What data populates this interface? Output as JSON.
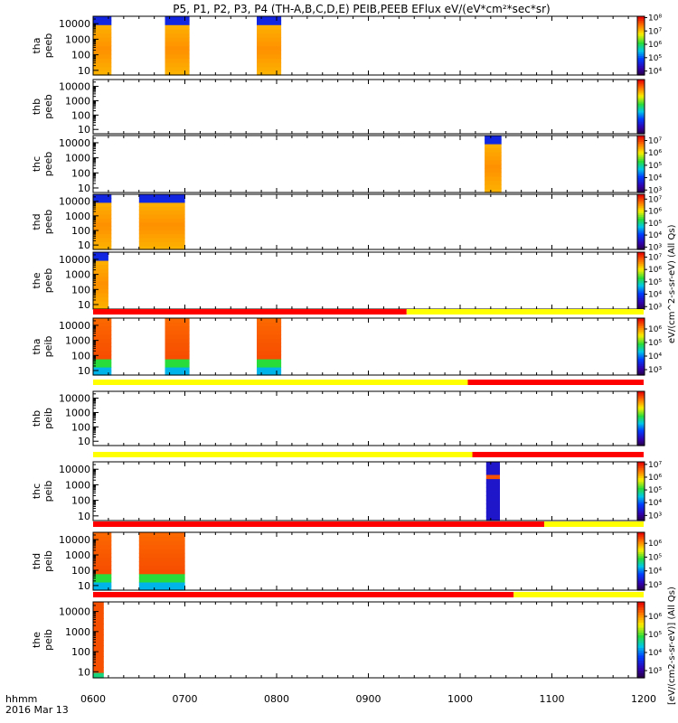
{
  "title": "P5, P1, P2, P3, P4 (TH-A,B,C,D,E) PEIB,PEEB EFlux eV/(eV*cm²*sec*sr)",
  "time_axis": {
    "label_line1": "hhmm",
    "label_line2": "2016 Mar 13",
    "ticks": [
      "0600",
      "0700",
      "0800",
      "0900",
      "1000",
      "1100",
      "1200"
    ],
    "range_hours": [
      6,
      12
    ]
  },
  "colorbar_labels": {
    "electron": "eV/(cm^2-s-sr-eV) (All Qs)",
    "ion": "[eV/(cm2-s-sr-eV)] (All Qs)"
  },
  "chart_data": [
    {
      "type": "heatmap",
      "probe": "tha",
      "product": "peeb",
      "ylabel": "tha\npeeb",
      "yscale": "log",
      "ylim": [
        5,
        30000
      ],
      "yticks": [
        "10",
        "100",
        "1000",
        "10000"
      ],
      "cbar": {
        "ticks": [
          "10⁴",
          "10⁵",
          "10⁶",
          "10⁷",
          "10⁸"
        ],
        "range_exp": [
          3.7,
          8.1
        ]
      },
      "bursts": [
        {
          "start": "06:00",
          "end": "06:12",
          "profile": "electron"
        },
        {
          "start": "06:47",
          "end": "07:03",
          "profile": "electron"
        },
        {
          "start": "07:47",
          "end": "08:03",
          "profile": "electron"
        }
      ],
      "mode_bar": null
    },
    {
      "type": "heatmap",
      "probe": "thb",
      "product": "peeb",
      "ylabel": "thb\npeeb",
      "yscale": "log",
      "ylim": [
        5,
        30000
      ],
      "yticks": [
        "10",
        "100",
        "1000",
        "10000"
      ],
      "cbar": {
        "ticks": [],
        "range_exp": [
          3.7,
          8.1
        ]
      },
      "bursts": [],
      "mode_bar": null
    },
    {
      "type": "heatmap",
      "probe": "thc",
      "product": "peeb",
      "ylabel": "thc\npeeb",
      "yscale": "log",
      "ylim": [
        5,
        30000
      ],
      "yticks": [
        "10",
        "100",
        "1000",
        "10000"
      ],
      "cbar": {
        "ticks": [
          "10³",
          "10⁴",
          "10⁵",
          "10⁶",
          "10⁷"
        ],
        "range_exp": [
          2.8,
          7.4
        ]
      },
      "bursts": [
        {
          "start": "10:16",
          "end": "10:27",
          "profile": "electron"
        }
      ],
      "mode_bar": null
    },
    {
      "type": "heatmap",
      "probe": "thd",
      "product": "peeb",
      "ylabel": "thd\npeeb",
      "yscale": "log",
      "ylim": [
        5,
        30000
      ],
      "yticks": [
        "10",
        "100",
        "1000",
        "10000"
      ],
      "cbar": {
        "ticks": [
          "10³",
          "10⁴",
          "10⁵",
          "10⁶",
          "10⁷"
        ],
        "range_exp": [
          2.8,
          7.4
        ]
      },
      "bursts": [
        {
          "start": "06:00",
          "end": "06:12",
          "profile": "electron"
        },
        {
          "start": "06:30",
          "end": "07:00",
          "profile": "electron"
        }
      ],
      "mode_bar": null
    },
    {
      "type": "heatmap",
      "probe": "the",
      "product": "peeb",
      "ylabel": "the\npeeb",
      "yscale": "log",
      "ylim": [
        5,
        30000
      ],
      "yticks": [
        "10",
        "100",
        "1000",
        "10000"
      ],
      "cbar": {
        "ticks": [
          "10³",
          "10⁴",
          "10⁵",
          "10⁶",
          "10⁷"
        ],
        "range_exp": [
          2.8,
          7.4
        ]
      },
      "bursts": [
        {
          "start": "06:00",
          "end": "06:10",
          "profile": "electron"
        }
      ],
      "mode_bar": [
        {
          "start": "06:00",
          "end": "09:25",
          "color": "#ff0000"
        },
        {
          "start": "09:25",
          "end": "12:00",
          "color": "#ffff00"
        }
      ]
    },
    {
      "type": "heatmap",
      "probe": "tha",
      "product": "peib",
      "ylabel": "tha\npeib",
      "yscale": "log",
      "ylim": [
        5,
        30000
      ],
      "yticks": [
        "10",
        "100",
        "1000",
        "10000"
      ],
      "cbar": {
        "ticks": [
          "10³",
          "10⁴",
          "10⁵",
          "10⁶"
        ],
        "range_exp": [
          2.6,
          6.8
        ]
      },
      "bursts": [
        {
          "start": "06:00",
          "end": "06:12",
          "profile": "ion"
        },
        {
          "start": "06:47",
          "end": "07:03",
          "profile": "ion"
        },
        {
          "start": "07:47",
          "end": "08:03",
          "profile": "ion"
        }
      ],
      "mode_bar": [
        {
          "start": "06:00",
          "end": "10:05",
          "color": "#ffff00"
        },
        {
          "start": "10:05",
          "end": "12:00",
          "color": "#ff0000"
        }
      ]
    },
    {
      "type": "heatmap",
      "probe": "thb",
      "product": "peib",
      "ylabel": "thb\npeib",
      "yscale": "log",
      "ylim": [
        5,
        30000
      ],
      "yticks": [
        "10",
        "100",
        "1000",
        "10000"
      ],
      "cbar": {
        "ticks": [],
        "range_exp": [
          2.6,
          6.8
        ]
      },
      "bursts": [],
      "mode_bar": [
        {
          "start": "06:00",
          "end": "10:08",
          "color": "#ffff00"
        },
        {
          "start": "10:08",
          "end": "12:00",
          "color": "#ff0000"
        }
      ]
    },
    {
      "type": "heatmap",
      "probe": "thc",
      "product": "peib",
      "ylabel": "thc\npeib",
      "yscale": "log",
      "ylim": [
        5,
        30000
      ],
      "yticks": [
        "10",
        "100",
        "1000",
        "10000"
      ],
      "cbar": {
        "ticks": [
          "10³",
          "10⁴",
          "10⁵",
          "10⁶",
          "10⁷"
        ],
        "range_exp": [
          2.6,
          7.2
        ]
      },
      "bursts": [
        {
          "start": "10:17",
          "end": "10:26",
          "profile": "ion_band"
        }
      ],
      "mode_bar": [
        {
          "start": "06:00",
          "end": "10:55",
          "color": "#ff0000"
        },
        {
          "start": "10:55",
          "end": "12:00",
          "color": "#ffff00"
        }
      ]
    },
    {
      "type": "heatmap",
      "probe": "thd",
      "product": "peib",
      "ylabel": "thd\npeib",
      "yscale": "log",
      "ylim": [
        5,
        30000
      ],
      "yticks": [
        "10",
        "100",
        "1000",
        "10000"
      ],
      "cbar": {
        "ticks": [
          "10³",
          "10⁴",
          "10⁵",
          "10⁶"
        ],
        "range_exp": [
          2.6,
          6.8
        ]
      },
      "bursts": [
        {
          "start": "06:00",
          "end": "06:12",
          "profile": "ion"
        },
        {
          "start": "06:30",
          "end": "07:00",
          "profile": "ion"
        }
      ],
      "mode_bar": [
        {
          "start": "06:00",
          "end": "10:35",
          "color": "#ff0000"
        },
        {
          "start": "10:35",
          "end": "12:00",
          "color": "#ffff00"
        }
      ]
    },
    {
      "type": "heatmap",
      "probe": "the",
      "product": "peib",
      "ylabel": "the\npeib",
      "yscale": "log",
      "ylim": [
        5,
        30000
      ],
      "yticks": [
        "10",
        "100",
        "1000",
        "10000"
      ],
      "cbar": {
        "ticks": [
          "10³",
          "10⁴",
          "10⁵",
          "10⁶"
        ],
        "range_exp": [
          2.6,
          6.8
        ]
      },
      "bursts": [
        {
          "start": "06:00",
          "end": "06:07",
          "profile": "ion_sparse"
        }
      ],
      "mode_bar": null
    }
  ]
}
